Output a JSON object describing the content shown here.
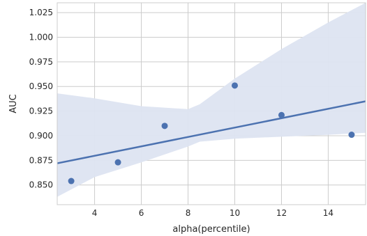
{
  "chart_data": {
    "type": "scatter",
    "title": "",
    "xlabel": "alpha(percentile)",
    "ylabel": "AUC",
    "xlim": [
      2.4,
      15.6
    ],
    "ylim": [
      0.83,
      1.035
    ],
    "xticks": [
      4,
      6,
      8,
      10,
      12,
      14
    ],
    "yticks": [
      0.85,
      0.875,
      0.9,
      0.925,
      0.95,
      0.975,
      1.0,
      1.025
    ],
    "ytick_labels": [
      "0.850",
      "0.875",
      "0.900",
      "0.925",
      "0.950",
      "0.975",
      "1.000",
      "1.025"
    ],
    "grid": true,
    "series": [
      {
        "x": [
          3,
          5,
          7,
          10,
          12,
          15
        ],
        "y": [
          0.854,
          0.873,
          0.91,
          0.951,
          0.921,
          0.901
        ]
      }
    ],
    "regression_line": {
      "x": [
        2.4,
        15.6
      ],
      "y": [
        0.872,
        0.935
      ]
    },
    "confidence_band": {
      "x": [
        2.4,
        4,
        6,
        8,
        8.5,
        10,
        12,
        14,
        15.6
      ],
      "upper": [
        0.943,
        0.938,
        0.93,
        0.927,
        0.932,
        0.958,
        0.988,
        1.015,
        1.035
      ],
      "lower": [
        0.838,
        0.858,
        0.873,
        0.889,
        0.894,
        0.897,
        0.899,
        0.901,
        0.903
      ]
    },
    "colors": {
      "points": "#4c72b0",
      "line": "#4c72b0",
      "band": "#dde4f1",
      "grid": "#cccccc",
      "frame": "#cccccc"
    }
  }
}
